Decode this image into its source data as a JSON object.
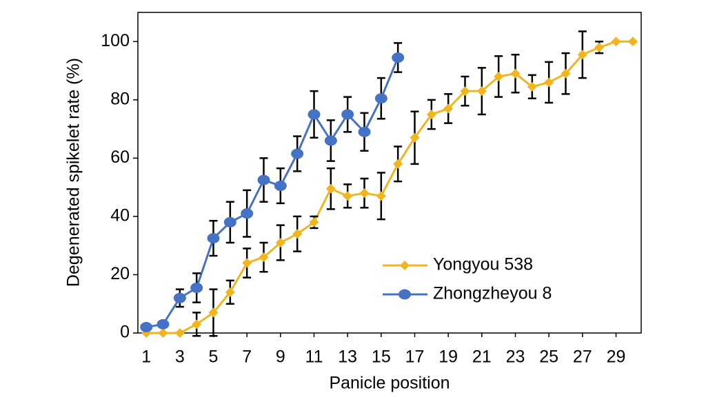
{
  "chart_data": {
    "type": "line",
    "xlabel": "Panicle position",
    "ylabel": "Degenerated spikelet rate (%)",
    "xlim": [
      0.5,
      30.5
    ],
    "xticks": [
      1,
      3,
      5,
      7,
      9,
      11,
      13,
      15,
      17,
      19,
      21,
      23,
      25,
      27,
      29
    ],
    "ylim": [
      0,
      110
    ],
    "yticks": [
      0,
      20,
      40,
      60,
      80,
      100
    ],
    "grid": false,
    "legend": "lower right",
    "series": [
      {
        "name": "Yongyou 538",
        "color": "#f2b51f",
        "marker": "diamond",
        "x": [
          1,
          2,
          3,
          4,
          5,
          6,
          7,
          8,
          9,
          10,
          11,
          12,
          13,
          14,
          15,
          16,
          17,
          18,
          19,
          20,
          21,
          22,
          23,
          24,
          25,
          26,
          27,
          28,
          29,
          30
        ],
        "values": [
          0,
          0,
          0,
          3,
          7,
          14,
          24,
          26,
          31,
          34,
          38,
          49.5,
          47,
          48,
          47,
          58,
          67,
          75,
          77,
          83,
          83,
          88,
          89,
          84.5,
          86,
          89,
          95.5,
          98,
          100,
          100
        ],
        "errors": [
          0,
          0,
          0,
          4,
          8,
          4,
          5,
          5,
          6,
          6,
          2,
          7,
          4,
          5,
          8,
          6,
          9,
          5,
          5,
          5,
          8,
          7,
          6.5,
          4,
          7,
          7,
          8,
          2,
          0,
          0
        ]
      },
      {
        "name": "Zhongzheyou 8",
        "color": "#4472c4",
        "marker": "circle",
        "x": [
          1,
          2,
          3,
          4,
          5,
          6,
          7,
          8,
          9,
          10,
          11,
          12,
          13,
          14,
          15,
          16
        ],
        "values": [
          2,
          3,
          12,
          15.5,
          32.5,
          38,
          41,
          52.5,
          50.5,
          61.5,
          75,
          66,
          75,
          69,
          80.5,
          94.5
        ],
        "errors": [
          0.5,
          0.5,
          3,
          5,
          6,
          7,
          8,
          7.5,
          6,
          6,
          8,
          7,
          6,
          6.5,
          7,
          5
        ]
      }
    ]
  }
}
